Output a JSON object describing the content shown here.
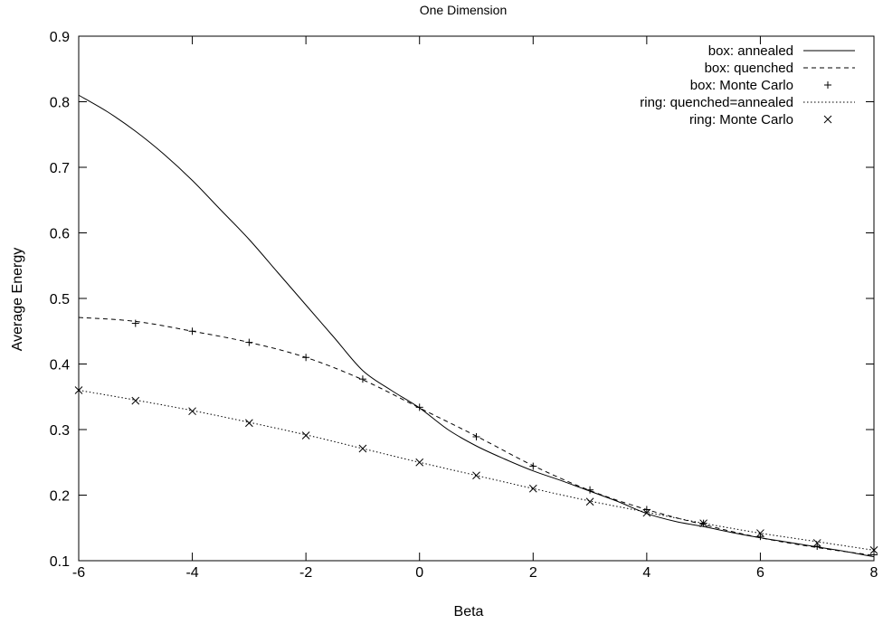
{
  "chart_data": {
    "type": "line",
    "title": "One Dimension",
    "xlabel": "Beta",
    "ylabel": "Average Energy",
    "xlim": [
      -6,
      8
    ],
    "ylim": [
      0.1,
      0.9
    ],
    "xticks": [
      -6,
      -4,
      -2,
      0,
      2,
      4,
      6,
      8
    ],
    "xtick_labels": [
      "-6",
      "-4",
      "-2",
      "0",
      "2",
      "4",
      "6",
      "8"
    ],
    "yticks": [
      0.1,
      0.2,
      0.3,
      0.4,
      0.5,
      0.6,
      0.7,
      0.8,
      0.9
    ],
    "ytick_labels": [
      "0.1",
      "0.2",
      "0.3",
      "0.4",
      "0.5",
      "0.6",
      "0.7",
      "0.8",
      "0.9"
    ],
    "grid": false,
    "legend": "top-right",
    "series": [
      {
        "name": "box: annealed",
        "style": "solid",
        "x": [
          -6,
          -5.5,
          -5,
          -4.5,
          -4,
          -3.5,
          -3,
          -2.5,
          -2,
          -1.5,
          -1,
          -0.5,
          0,
          0.5,
          1,
          1.5,
          2,
          2.5,
          3,
          3.5,
          4,
          4.5,
          5,
          5.5,
          6,
          6.5,
          7,
          7.5,
          8
        ],
        "y": [
          0.81,
          0.785,
          0.755,
          0.72,
          0.68,
          0.635,
          0.59,
          0.54,
          0.49,
          0.44,
          0.39,
          0.36,
          0.333,
          0.3,
          0.275,
          0.255,
          0.237,
          0.222,
          0.206,
          0.19,
          0.172,
          0.16,
          0.152,
          0.143,
          0.135,
          0.128,
          0.121,
          0.114,
          0.106
        ]
      },
      {
        "name": "box: quenched",
        "style": "dashed",
        "x": [
          -6,
          -5,
          -4,
          -3,
          -2,
          -1,
          0,
          1,
          2,
          3,
          4,
          5,
          6,
          7,
          8
        ],
        "y": [
          0.471,
          0.465,
          0.45,
          0.433,
          0.41,
          0.376,
          0.333,
          0.29,
          0.245,
          0.207,
          0.178,
          0.155,
          0.135,
          0.12,
          0.108
        ]
      },
      {
        "name": "box: Monte Carlo",
        "style": "plus",
        "x": [
          -5,
          -4,
          -3,
          -2,
          -1,
          0,
          1,
          2,
          3,
          4,
          5,
          6,
          7,
          8
        ],
        "y": [
          0.462,
          0.45,
          0.433,
          0.41,
          0.377,
          0.334,
          0.289,
          0.244,
          0.208,
          0.178,
          0.157,
          0.137,
          0.122,
          0.109
        ]
      },
      {
        "name": "ring: quenched=annealed",
        "style": "dotted",
        "x": [
          -6,
          -5,
          -4,
          -3,
          -2,
          -1,
          0,
          1,
          2,
          3,
          4,
          5,
          6,
          7,
          8
        ],
        "y": [
          0.36,
          0.345,
          0.329,
          0.311,
          0.292,
          0.271,
          0.25,
          0.23,
          0.21,
          0.191,
          0.174,
          0.157,
          0.142,
          0.129,
          0.116
        ]
      },
      {
        "name": "ring: Monte Carlo",
        "style": "cross",
        "x": [
          -6,
          -5,
          -4,
          -3,
          -2,
          -1,
          0,
          1,
          2,
          3,
          4,
          5,
          6,
          7,
          8
        ],
        "y": [
          0.36,
          0.344,
          0.328,
          0.31,
          0.291,
          0.271,
          0.25,
          0.23,
          0.21,
          0.19,
          0.173,
          0.157,
          0.142,
          0.127,
          0.116
        ]
      }
    ]
  }
}
